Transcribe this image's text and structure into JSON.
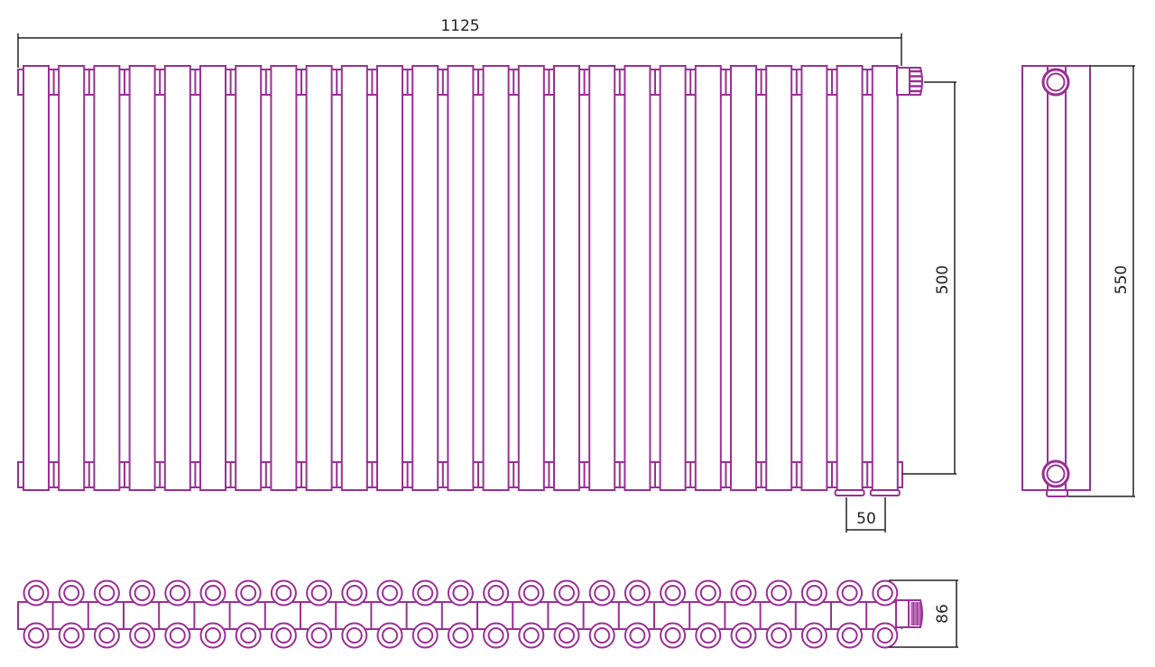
{
  "drawing": {
    "sections": 25,
    "colors": {
      "radiator": "#9b2f96",
      "dimension": "#222222"
    },
    "dimensions": {
      "width": "1125",
      "axis_distance": "500",
      "height": "550",
      "connection_spacing": "50",
      "depth": "86"
    }
  }
}
